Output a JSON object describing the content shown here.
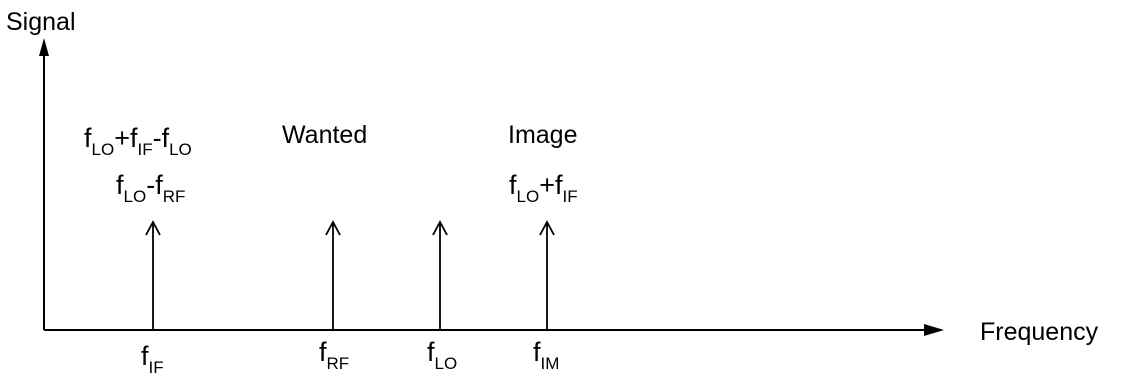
{
  "axes": {
    "y_label": "Signal",
    "x_label": "Frequency"
  },
  "headings": {
    "wanted": "Wanted",
    "image": "Image"
  },
  "expressions": {
    "intermod_top": [
      {
        "t": "f",
        "s": "LO"
      },
      {
        "t": "+f",
        "s": "IF"
      },
      {
        "t": "-f",
        "s": "LO"
      }
    ],
    "if_product": [
      {
        "t": "f",
        "s": "LO"
      },
      {
        "t": "-f",
        "s": "RF"
      }
    ],
    "image_product": [
      {
        "t": "f",
        "s": "LO"
      },
      {
        "t": "+f",
        "s": "IF"
      }
    ]
  },
  "ticks": {
    "if": {
      "t": "f",
      "s": "IF"
    },
    "rf": {
      "t": "f",
      "s": "RF"
    },
    "lo": {
      "t": "f",
      "s": "LO"
    },
    "im": {
      "t": "f",
      "s": "IM"
    }
  },
  "colors": {
    "ink": "#000000",
    "background": "#ffffff"
  }
}
